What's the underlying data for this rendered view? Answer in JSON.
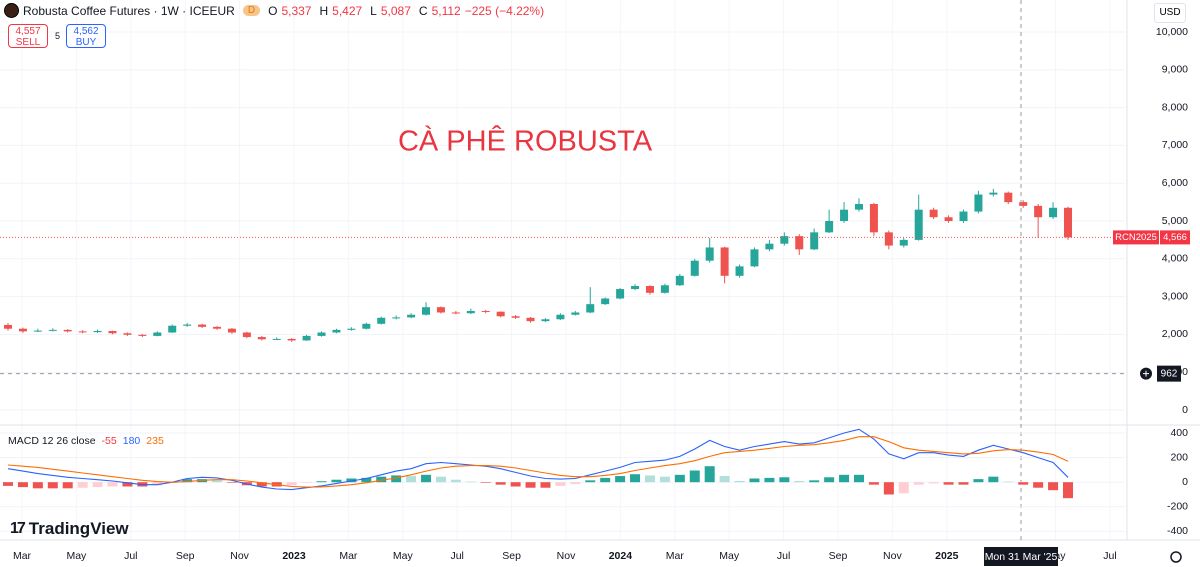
{
  "header": {
    "symbol": "Robusta Coffee Futures · 1W · ICEEUR",
    "badge": "D",
    "o_label": "O",
    "o": "5,337",
    "h_label": "H",
    "h": "5,427",
    "l_label": "L",
    "l": "5,087",
    "c_label": "C",
    "c": "5,112",
    "change": "−225 (−4.22%)",
    "sell_price": "4,557",
    "sell": "SELL",
    "spread": "5",
    "buy_price": "4,562",
    "buy": "BUY",
    "currency": "USD",
    "logo": "TradingView"
  },
  "chart_data": [
    {
      "type": "candlestick",
      "annotation": "CÀ PHÊ ROBUSTA",
      "up_color": "#26a69a",
      "down_color": "#ef5350",
      "ylim": [
        -397,
        10847
      ],
      "yticks": [
        0,
        {
          "value": 1000,
          "label": "1,000"
        },
        {
          "value": 2000,
          "label": "2,000"
        },
        {
          "value": 3000,
          "label": "3,000"
        },
        {
          "value": 4000,
          "label": "4,000"
        },
        {
          "value": 5000,
          "label": "5,000"
        },
        {
          "value": 6000,
          "label": "6,000"
        },
        {
          "value": 7000,
          "label": "7,000"
        },
        {
          "value": 8000,
          "label": "8,000"
        },
        {
          "value": 9000,
          "label": "9,000"
        },
        {
          "value": 10000,
          "label": "10,000"
        }
      ],
      "xticks": [
        "Mar",
        "May",
        "Jul",
        "Sep",
        "Nov",
        "2023",
        "Mar",
        "May",
        "Jul",
        "Sep",
        "Nov",
        "2024",
        "Mar",
        "May",
        "Jul",
        "Sep",
        "Nov",
        "2025",
        null,
        "May",
        "Jul"
      ],
      "last_price": {
        "name": "RCN2025",
        "value": 4566,
        "label": "4,566"
      },
      "crosshair": {
        "value": 962,
        "date": "Mon 31 Mar '25"
      },
      "ohlc": [
        [
          2250,
          2300,
          2100,
          2150
        ],
        [
          2150,
          2180,
          2040,
          2080
        ],
        [
          2080,
          2150,
          2060,
          2100
        ],
        [
          2100,
          2160,
          2080,
          2120
        ],
        [
          2120,
          2140,
          2050,
          2080
        ],
        [
          2080,
          2110,
          2030,
          2060
        ],
        [
          2060,
          2130,
          2040,
          2090
        ],
        [
          2090,
          2100,
          2000,
          2030
        ],
        [
          2030,
          2050,
          1960,
          1990
        ],
        [
          1990,
          2010,
          1930,
          1960
        ],
        [
          1960,
          2080,
          1950,
          2050
        ],
        [
          2050,
          2260,
          2040,
          2230
        ],
        [
          2230,
          2300,
          2200,
          2260
        ],
        [
          2260,
          2280,
          2170,
          2200
        ],
        [
          2200,
          2220,
          2120,
          2150
        ],
        [
          2150,
          2170,
          2020,
          2050
        ],
        [
          2050,
          2070,
          1900,
          1930
        ],
        [
          1930,
          1960,
          1840,
          1870
        ],
        [
          1870,
          1920,
          1850,
          1880
        ],
        [
          1880,
          1900,
          1800,
          1840
        ],
        [
          1840,
          1990,
          1830,
          1960
        ],
        [
          1960,
          2080,
          1940,
          2050
        ],
        [
          2050,
          2150,
          2030,
          2120
        ],
        [
          2120,
          2190,
          2100,
          2150
        ],
        [
          2150,
          2310,
          2130,
          2280
        ],
        [
          2280,
          2470,
          2260,
          2440
        ],
        [
          2440,
          2500,
          2400,
          2450
        ],
        [
          2450,
          2560,
          2430,
          2520
        ],
        [
          2520,
          2850,
          2500,
          2720
        ],
        [
          2720,
          2740,
          2550,
          2580
        ],
        [
          2580,
          2620,
          2530,
          2560
        ],
        [
          2560,
          2680,
          2540,
          2620
        ],
        [
          2620,
          2650,
          2560,
          2600
        ],
        [
          2600,
          2610,
          2450,
          2480
        ],
        [
          2480,
          2510,
          2410,
          2440
        ],
        [
          2440,
          2460,
          2310,
          2350
        ],
        [
          2350,
          2430,
          2330,
          2400
        ],
        [
          2400,
          2560,
          2380,
          2520
        ],
        [
          2520,
          2620,
          2500,
          2580
        ],
        [
          2580,
          3250,
          2560,
          2800
        ],
        [
          2800,
          2980,
          2780,
          2950
        ],
        [
          2950,
          3230,
          2930,
          3200
        ],
        [
          3200,
          3330,
          3170,
          3280
        ],
        [
          3280,
          3300,
          3050,
          3100
        ],
        [
          3100,
          3340,
          3080,
          3300
        ],
        [
          3300,
          3600,
          3280,
          3550
        ],
        [
          3550,
          4000,
          3530,
          3950
        ],
        [
          3950,
          4550,
          3900,
          4300
        ],
        [
          4300,
          4320,
          3350,
          3550
        ],
        [
          3550,
          3850,
          3500,
          3800
        ],
        [
          3800,
          4300,
          3780,
          4250
        ],
        [
          4250,
          4500,
          4200,
          4400
        ],
        [
          4400,
          4700,
          4350,
          4600
        ],
        [
          4600,
          4650,
          4100,
          4250
        ],
        [
          4250,
          4800,
          4230,
          4700
        ],
        [
          4700,
          5300,
          4680,
          5000
        ],
        [
          5000,
          5500,
          4950,
          5300
        ],
        [
          5300,
          5600,
          5250,
          5450
        ],
        [
          5450,
          5480,
          4600,
          4700
        ],
        [
          4700,
          4750,
          4250,
          4350
        ],
        [
          4350,
          4550,
          4300,
          4500
        ],
        [
          4500,
          5700,
          4480,
          5300
        ],
        [
          5300,
          5350,
          5050,
          5100
        ],
        [
          5100,
          5150,
          4950,
          5000
        ],
        [
          5000,
          5300,
          4950,
          5250
        ],
        [
          5250,
          5800,
          5200,
          5700
        ],
        [
          5700,
          5850,
          5650,
          5750
        ],
        [
          5750,
          5780,
          5450,
          5500
        ],
        [
          5500,
          5550,
          5350,
          5400
        ],
        [
          5400,
          5450,
          4550,
          5100
        ],
        [
          5100,
          5500,
          5050,
          5350
        ],
        [
          5350,
          5380,
          4500,
          4566
        ]
      ]
    },
    {
      "type": "macd",
      "title": "MACD 12 26 close",
      "readouts": [
        {
          "value": -55,
          "color": "#f23645"
        },
        {
          "value": 180,
          "color": "#2962ff"
        },
        {
          "value": 235,
          "color": "#ff6d00"
        }
      ],
      "ylim": [
        -470,
        465
      ],
      "yticks": [
        -400,
        -200,
        0,
        200,
        400
      ],
      "series": [
        {
          "color": "#2962ff",
          "values": [
            110,
            90,
            70,
            55,
            40,
            30,
            20,
            10,
            -5,
            -20,
            -20,
            0,
            30,
            40,
            35,
            15,
            -15,
            -40,
            -55,
            -60,
            -45,
            -30,
            -10,
            10,
            30,
            60,
            90,
            110,
            150,
            160,
            150,
            140,
            130,
            110,
            80,
            50,
            30,
            25,
            30,
            60,
            90,
            120,
            160,
            170,
            180,
            210,
            270,
            340,
            290,
            260,
            290,
            310,
            330,
            310,
            320,
            360,
            400,
            430,
            350,
            230,
            190,
            240,
            240,
            220,
            210,
            260,
            300,
            270,
            240,
            200,
            160,
            40
          ]
        },
        {
          "color": "#ff6d00",
          "values": [
            140,
            130,
            120,
            105,
            90,
            75,
            60,
            45,
            30,
            15,
            5,
            0,
            5,
            15,
            20,
            20,
            10,
            -5,
            -20,
            -35,
            -40,
            -38,
            -30,
            -20,
            -5,
            15,
            35,
            60,
            90,
            115,
            130,
            135,
            135,
            130,
            115,
            95,
            75,
            55,
            45,
            45,
            55,
            70,
            95,
            115,
            135,
            150,
            175,
            210,
            240,
            250,
            260,
            275,
            290,
            300,
            305,
            320,
            340,
            370,
            370,
            330,
            280,
            260,
            250,
            240,
            230,
            235,
            255,
            265,
            260,
            245,
            225,
            170
          ]
        }
      ],
      "histogram": {
        "up_color": "#26a69a",
        "up_fade": "#b2dfdb",
        "down_color": "#ef5350",
        "down_fade": "#ffcdd2",
        "values": [
          -30,
          -40,
          -50,
          -50,
          -50,
          -45,
          -40,
          -35,
          -35,
          -35,
          -25,
          0,
          25,
          25,
          15,
          -5,
          -25,
          -35,
          -35,
          -25,
          -5,
          8,
          20,
          30,
          35,
          45,
          55,
          50,
          60,
          45,
          20,
          5,
          -5,
          -20,
          -35,
          -45,
          -45,
          -30,
          -15,
          15,
          35,
          50,
          65,
          55,
          45,
          60,
          95,
          130,
          50,
          10,
          30,
          35,
          40,
          10,
          15,
          40,
          60,
          60,
          -20,
          -100,
          -90,
          -20,
          -10,
          -20,
          -20,
          25,
          45,
          5,
          -20,
          -45,
          -65,
          -130
        ]
      }
    }
  ]
}
